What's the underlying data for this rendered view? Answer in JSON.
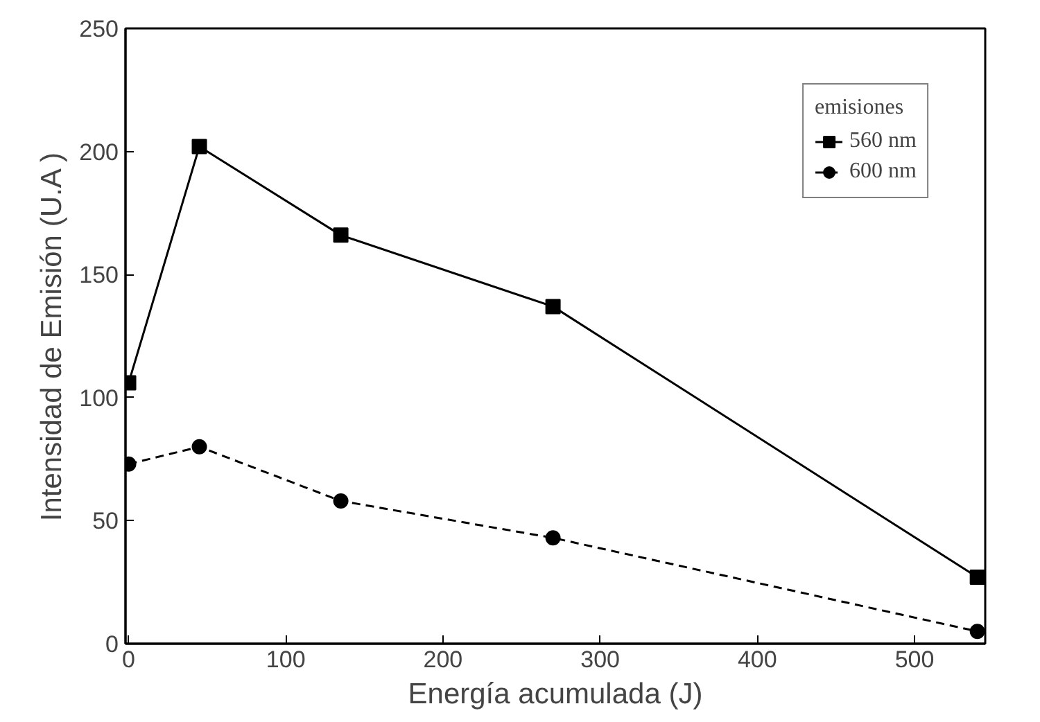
{
  "chart_data": {
    "type": "line",
    "xlabel": "Energía acumulada (J)",
    "ylabel": "Intensidad de Emisión (U.A )",
    "legend_title": "emisiones",
    "x": [
      0,
      45,
      135,
      270,
      540
    ],
    "series": [
      {
        "name": "560 nm",
        "color": "#000000",
        "values": [
          106,
          202,
          166,
          137,
          27
        ],
        "marker": "square",
        "line_style": "solid"
      },
      {
        "name": "600 nm",
        "color": "#000000",
        "values": [
          73,
          80,
          58,
          43,
          5
        ],
        "marker": "circle",
        "line_style": "dashed"
      }
    ],
    "xlim": [
      -2,
      545
    ],
    "ylim": [
      0,
      250
    ],
    "xticks": [
      0,
      100,
      200,
      300,
      400,
      500
    ],
    "yticks": [
      0,
      50,
      100,
      150,
      200,
      250
    ],
    "grid": false,
    "legend": "top right"
  }
}
